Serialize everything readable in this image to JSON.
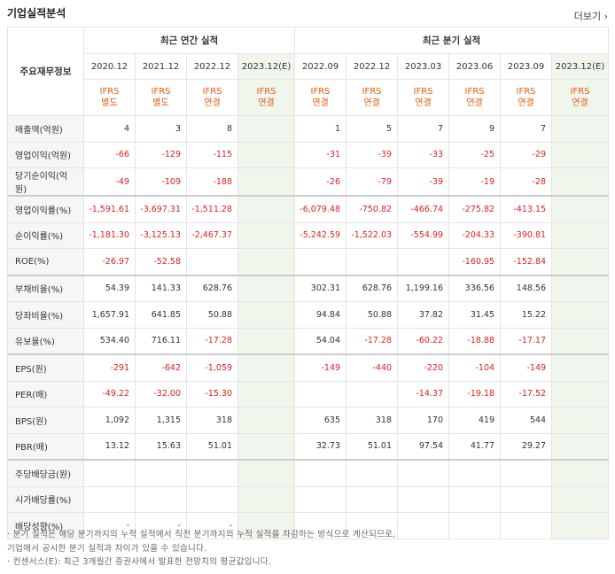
{
  "header": {
    "title": "기업실적분석",
    "more_label": "더보기 ›"
  },
  "table": {
    "stub_label": "주요재무정보",
    "annual_label": "최근 연간 실적",
    "quarter_label": "최근 분기 실적",
    "periods": [
      "2020.12",
      "2021.12",
      "2022.12",
      "2023.12(E)",
      "2022.09",
      "2022.12",
      "2023.03",
      "2023.06",
      "2023.09",
      "2023.12(E)"
    ],
    "standards": [
      [
        "IFRS",
        "별도"
      ],
      [
        "IFRS",
        "별도"
      ],
      [
        "IFRS",
        "연결"
      ],
      [
        "IFRS",
        "연결"
      ],
      [
        "IFRS",
        "연결"
      ],
      [
        "IFRS",
        "연결"
      ],
      [
        "IFRS",
        "연결"
      ],
      [
        "IFRS",
        "연결"
      ],
      [
        "IFRS",
        "연결"
      ],
      [
        "IFRS",
        "연결"
      ]
    ],
    "rows": [
      {
        "label": "매출액(억원)",
        "values": [
          "4",
          "3",
          "8",
          "",
          "1",
          "5",
          "7",
          "9",
          "7",
          ""
        ]
      },
      {
        "label": "영업이익(억원)",
        "values": [
          "-66",
          "-129",
          "-115",
          "",
          "-31",
          "-39",
          "-33",
          "-25",
          "-29",
          ""
        ]
      },
      {
        "label": "당기순이익(억원)",
        "values": [
          "-49",
          "-109",
          "-188",
          "",
          "-26",
          "-79",
          "-39",
          "-19",
          "-28",
          ""
        ]
      },
      {
        "label": "영업이익률(%)",
        "values": [
          "-1,591.61",
          "-3,697.31",
          "-1,511.28",
          "",
          "-6,079.48",
          "-750.82",
          "-466.74",
          "-275.82",
          "-413.15",
          ""
        ]
      },
      {
        "label": "순이익률(%)",
        "values": [
          "-1,181.30",
          "-3,125.13",
          "-2,467.37",
          "",
          "-5,242.59",
          "-1,522.03",
          "-554.99",
          "-204.33",
          "-390.81",
          ""
        ]
      },
      {
        "label": "ROE(%)",
        "values": [
          "-26.97",
          "-52.58",
          "",
          "",
          "",
          "",
          "",
          "-160.95",
          "-152.84",
          ""
        ]
      },
      {
        "label": "부채비율(%)",
        "values": [
          "54.39",
          "141.33",
          "628.76",
          "",
          "302.31",
          "628.76",
          "1,199.16",
          "336.56",
          "148.56",
          ""
        ]
      },
      {
        "label": "당좌비율(%)",
        "values": [
          "1,657.91",
          "641.85",
          "50.88",
          "",
          "94.84",
          "50.88",
          "37.82",
          "31.45",
          "15.22",
          ""
        ]
      },
      {
        "label": "유보율(%)",
        "values": [
          "534.40",
          "716.11",
          "-17.28",
          "",
          "54.04",
          "-17.28",
          "-60.22",
          "-18.88",
          "-17.17",
          ""
        ]
      },
      {
        "label": "EPS(원)",
        "values": [
          "-291",
          "-642",
          "-1,059",
          "",
          "-149",
          "-440",
          "-220",
          "-104",
          "-149",
          ""
        ]
      },
      {
        "label": "PER(배)",
        "values": [
          "-49.22",
          "-32.00",
          "-15.30",
          "",
          "",
          "",
          "-14.37",
          "-19.18",
          "-17.52",
          ""
        ]
      },
      {
        "label": "BPS(원)",
        "values": [
          "1,092",
          "1,315",
          "318",
          "",
          "635",
          "318",
          "170",
          "419",
          "544",
          ""
        ]
      },
      {
        "label": "PBR(배)",
        "values": [
          "13.12",
          "15.63",
          "51.01",
          "",
          "32.73",
          "51.01",
          "97.54",
          "41.77",
          "29.27",
          ""
        ]
      },
      {
        "label": "주당배당금(원)",
        "values": [
          "",
          "",
          "",
          "",
          "",
          "",
          "",
          "",
          "",
          ""
        ]
      },
      {
        "label": "시가배당률(%)",
        "values": [
          "",
          "",
          "",
          "",
          "",
          "",
          "",
          "",
          "",
          ""
        ]
      },
      {
        "label": "배당성향(%)",
        "values": [
          "-",
          "-",
          "-",
          "",
          "",
          "",
          "",
          "",
          "",
          ""
        ]
      }
    ]
  },
  "notes": [
    "· 분기 실적은 해당 분기까지의 누적 실적에서 직전 분기까지의 누적 실적을 차감하는 방식으로 계산되므로,",
    "  기업에서 공시한 분기 실적과 차이가 있을 수 있습니다.",
    "· 컨센서스(E): 최근 3개월간 증권사에서 발표한 전망치의 평균값입니다."
  ],
  "colors": {
    "negative": "#e02020",
    "standard": "#e8590c",
    "estimate_bg": "#f1f6ed"
  }
}
